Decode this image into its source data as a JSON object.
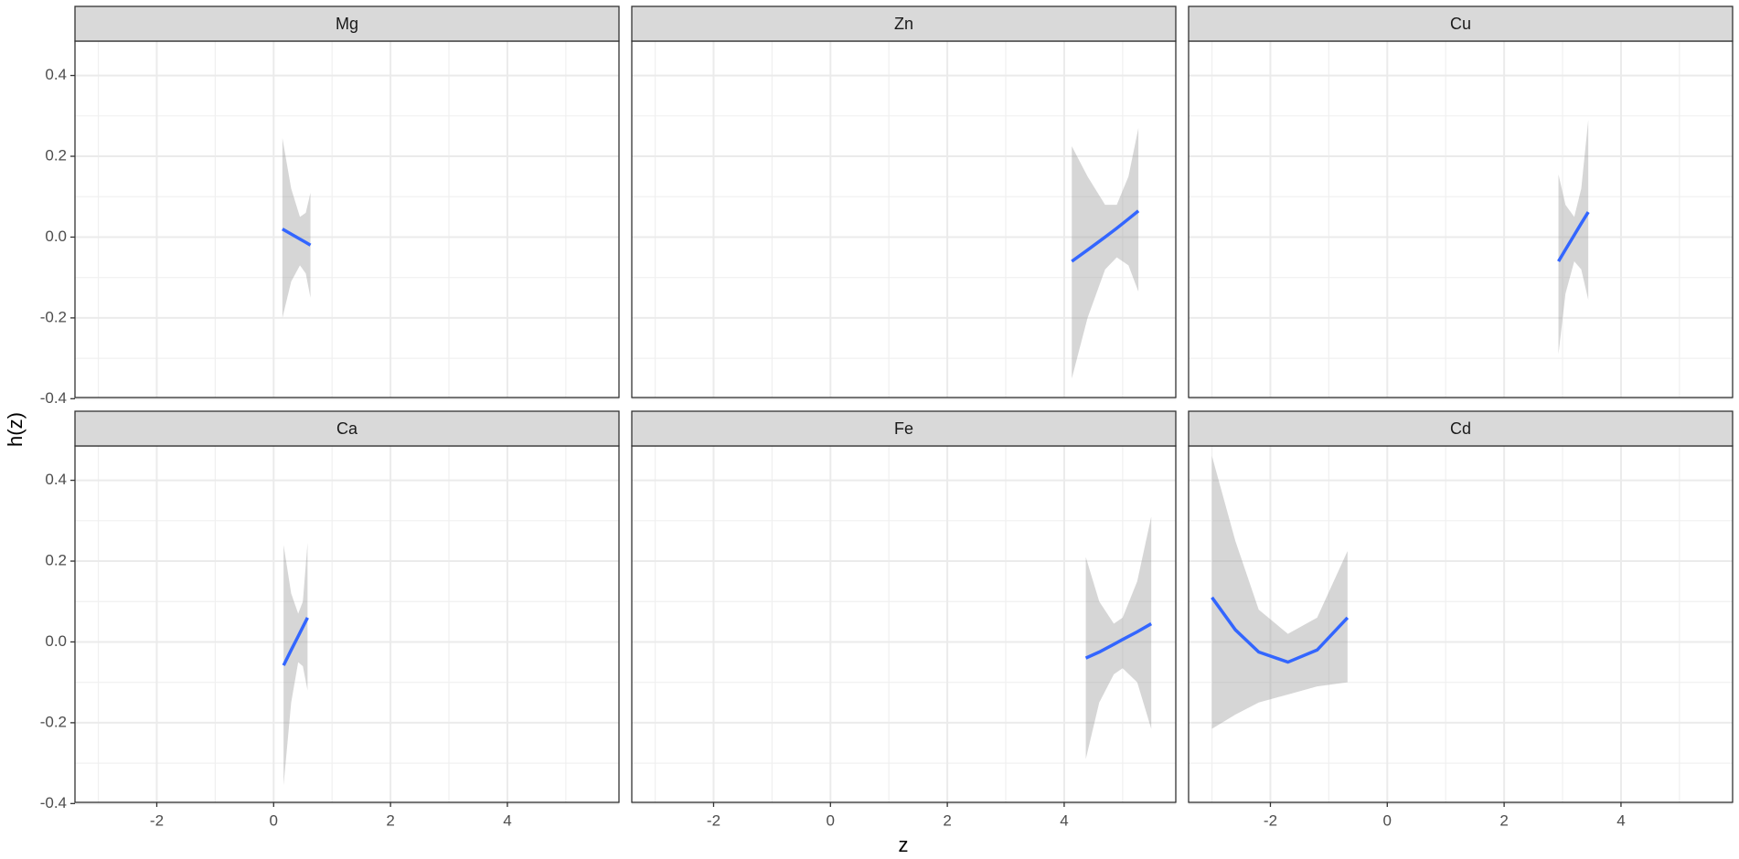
{
  "x_label": "z",
  "y_label": "h(z)",
  "chart_data": [
    {
      "type": "line",
      "title": "Mg",
      "color": "#3366FF",
      "fill": "#999999",
      "x": [
        0.15,
        0.3,
        0.45,
        0.55,
        0.63
      ],
      "values": [
        0.02,
        0.0075,
        -0.005,
        -0.013,
        -0.02
      ],
      "upper": [
        0.245,
        0.12,
        0.05,
        0.06,
        0.11
      ],
      "lower": [
        -0.2,
        -0.11,
        -0.07,
        -0.09,
        -0.15
      ],
      "xlim": [
        -3.4,
        5.91
      ],
      "ylim": [
        -0.397,
        0.485
      ],
      "xticks": [
        -2,
        0,
        2,
        4
      ],
      "yticks": [
        -0.4,
        -0.2,
        {
          "value": 0,
          "label": "0.0"
        },
        0.2,
        0.4
      ],
      "grid": true
    },
    {
      "type": "line",
      "title": "Zn",
      "color": "#3366FF",
      "fill": "#999999",
      "x": [
        4.13,
        4.4,
        4.7,
        4.9,
        5.1,
        5.27
      ],
      "values": [
        -0.06,
        -0.032,
        0.0,
        0.022,
        0.045,
        0.065
      ],
      "upper": [
        0.225,
        0.15,
        0.08,
        0.08,
        0.15,
        0.27
      ],
      "lower": [
        -0.35,
        -0.2,
        -0.08,
        -0.05,
        -0.07,
        -0.135
      ],
      "xlim": [
        -3.4,
        5.91
      ],
      "ylim": [
        -0.397,
        0.485
      ],
      "xticks": [
        -2,
        0,
        2,
        4
      ],
      "yticks": [
        -0.4,
        -0.2,
        {
          "value": 0,
          "label": "0.0"
        },
        0.2,
        0.4
      ],
      "grid": true
    },
    {
      "type": "line",
      "title": "Cu",
      "color": "#3366FF",
      "fill": "#999999",
      "x": [
        2.93,
        3.05,
        3.2,
        3.32,
        3.44
      ],
      "values": [
        -0.06,
        -0.031,
        0.005,
        0.034,
        0.062
      ],
      "upper": [
        0.155,
        0.08,
        0.05,
        0.12,
        0.29
      ],
      "lower": [
        -0.29,
        -0.14,
        -0.06,
        -0.08,
        -0.155
      ],
      "xlim": [
        -3.4,
        5.91
      ],
      "ylim": [
        -0.397,
        0.485
      ],
      "xticks": [
        -2,
        0,
        2,
        4
      ],
      "yticks": [
        -0.4,
        -0.2,
        {
          "value": 0,
          "label": "0.0"
        },
        0.2,
        0.4
      ],
      "grid": true
    },
    {
      "type": "line",
      "title": "Ca",
      "color": "#3366FF",
      "fill": "#999999",
      "x": [
        0.17,
        0.3,
        0.42,
        0.5,
        0.58
      ],
      "values": [
        -0.058,
        -0.02,
        0.014,
        0.037,
        0.06
      ],
      "upper": [
        0.24,
        0.12,
        0.07,
        0.1,
        0.245
      ],
      "lower": [
        -0.355,
        -0.15,
        -0.05,
        -0.06,
        -0.12
      ],
      "xlim": [
        -3.4,
        5.91
      ],
      "ylim": [
        -0.397,
        0.485
      ],
      "xticks": [
        -2,
        0,
        2,
        4
      ],
      "yticks": [
        -0.4,
        -0.2,
        {
          "value": 0,
          "label": "0.0"
        },
        0.2,
        0.4
      ],
      "grid": true
    },
    {
      "type": "line",
      "title": "Fe",
      "color": "#3366FF",
      "fill": "#999999",
      "x": [
        4.37,
        4.6,
        4.85,
        5.0,
        5.25,
        5.49
      ],
      "values": [
        -0.04,
        -0.025,
        -0.006,
        0.006,
        0.025,
        0.045
      ],
      "upper": [
        0.21,
        0.1,
        0.045,
        0.06,
        0.15,
        0.31
      ],
      "lower": [
        -0.29,
        -0.15,
        -0.08,
        -0.065,
        -0.1,
        -0.215
      ],
      "xlim": [
        -3.4,
        5.91
      ],
      "ylim": [
        -0.397,
        0.485
      ],
      "xticks": [
        -2,
        0,
        2,
        4
      ],
      "yticks": [
        -0.4,
        -0.2,
        {
          "value": 0,
          "label": "0.0"
        },
        0.2,
        0.4
      ],
      "grid": true
    },
    {
      "type": "line",
      "title": "Cd",
      "color": "#3366FF",
      "fill": "#999999",
      "x": [
        -3.0,
        -2.6,
        -2.2,
        -1.7,
        -1.2,
        -0.68
      ],
      "values": [
        0.11,
        0.03,
        -0.025,
        -0.05,
        -0.02,
        0.06
      ],
      "upper": [
        0.46,
        0.25,
        0.08,
        0.02,
        0.06,
        0.225
      ],
      "lower": [
        -0.215,
        -0.18,
        -0.15,
        -0.13,
        -0.11,
        -0.1
      ],
      "xlim": [
        -3.4,
        5.91
      ],
      "ylim": [
        -0.397,
        0.485
      ],
      "xticks": [
        -2,
        0,
        2,
        4
      ],
      "yticks": [
        -0.4,
        -0.2,
        {
          "value": 0,
          "label": "0.0"
        },
        0.2,
        0.4
      ],
      "grid": true
    }
  ]
}
